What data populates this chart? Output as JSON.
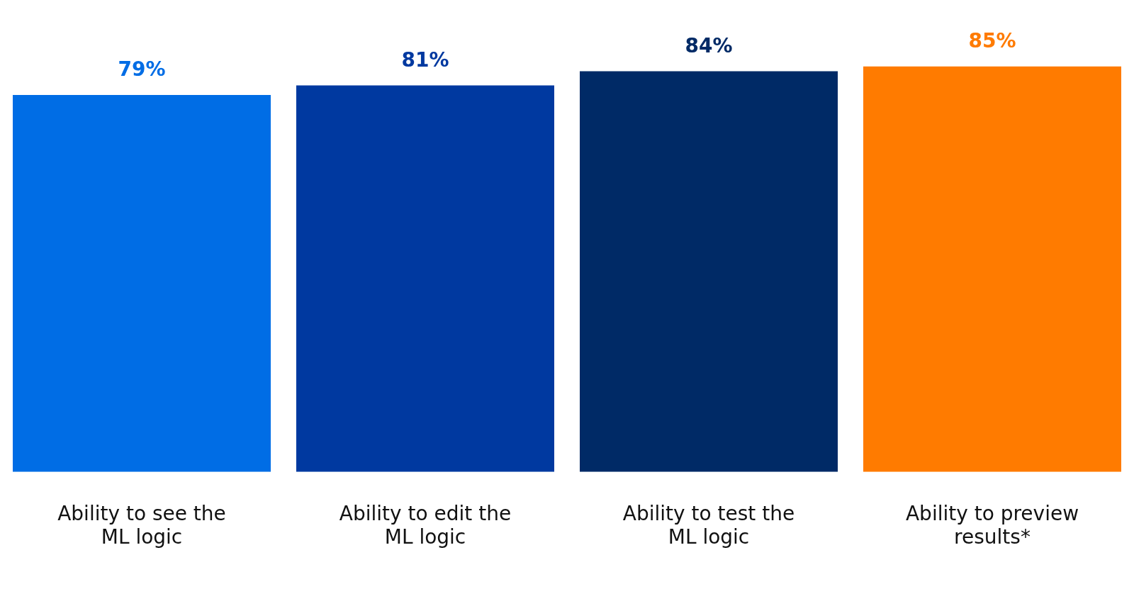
{
  "chart_data": {
    "type": "bar",
    "categories": [
      "Ability to see the ML logic",
      "Ability to edit the ML logic",
      "Ability to test the ML logic",
      "Ability to preview results*"
    ],
    "values": [
      79,
      81,
      84,
      85
    ],
    "colors": [
      "#006de5",
      "#0039a0",
      "#002a66",
      "#ff7b00"
    ],
    "value_labels": [
      "79%",
      "81%",
      "84%",
      "85%"
    ],
    "grid": false,
    "legend": false
  }
}
